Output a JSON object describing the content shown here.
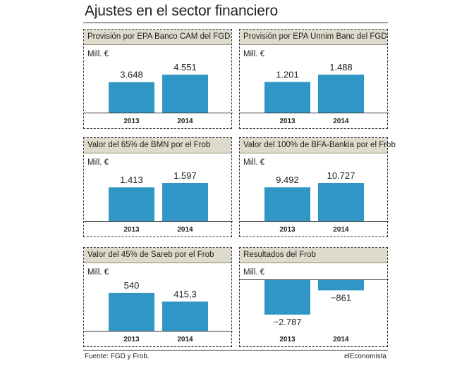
{
  "title": "Ajustes en el sector financiero",
  "source": "Fuente: FGD y Frob.",
  "brand": "elEconomista",
  "colors": {
    "bar": "#3096c6",
    "header": "#dedbcc",
    "text": "#222222"
  },
  "chart_data": [
    {
      "type": "bar",
      "title": "Provisión por EPA Banco CAM del FGD",
      "ylabel": "Mill. €",
      "categories": [
        "2013",
        "2014"
      ],
      "values": [
        3648,
        4551
      ],
      "labels": [
        "3.648",
        "4.551"
      ]
    },
    {
      "type": "bar",
      "title": "Provisión por EPA Unnim Banc del FGD",
      "ylabel": "Mill. €",
      "categories": [
        "2013",
        "2014"
      ],
      "values": [
        1201,
        1488
      ],
      "labels": [
        "1.201",
        "1.488"
      ]
    },
    {
      "type": "bar",
      "title": "Valor del 65% de BMN por el Frob",
      "ylabel": "Mill. €",
      "categories": [
        "2013",
        "2014"
      ],
      "values": [
        1413,
        1597
      ],
      "labels": [
        "1.413",
        "1.597"
      ]
    },
    {
      "type": "bar",
      "title": "Valor del 100% de BFA-Bankia por el Frob",
      "ylabel": "Mill. €",
      "categories": [
        "2013",
        "2014"
      ],
      "values": [
        9492,
        10727
      ],
      "labels": [
        "9.492",
        "10.727"
      ]
    },
    {
      "type": "bar",
      "title": "Valor del 45% de Sareb por el Frob",
      "ylabel": "Mill. €",
      "categories": [
        "2013",
        "2014"
      ],
      "values": [
        540,
        415.3
      ],
      "labels": [
        "540",
        "415,3"
      ]
    },
    {
      "type": "bar",
      "title": "Resultados del Frob",
      "ylabel": "Mill. €",
      "categories": [
        "2013",
        "2014"
      ],
      "values": [
        -2787,
        -861
      ],
      "labels": [
        "−2.787",
        "−861"
      ]
    }
  ]
}
